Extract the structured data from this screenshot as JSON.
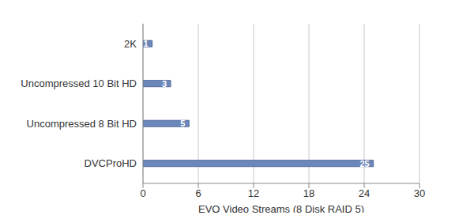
{
  "chart_data": {
    "type": "bar",
    "orientation": "horizontal",
    "categories": [
      "2K",
      "Uncompressed 10 Bit HD",
      "Uncompressed 8 Bit HD",
      "DVCProHD"
    ],
    "values": [
      1,
      3,
      5,
      25
    ],
    "color": "#6c87ba",
    "xlabel": "EVO Video Streams (8 Disk RAID 5)",
    "xlim": [
      0,
      30
    ],
    "xticks": [
      0,
      6,
      12,
      18,
      24,
      30
    ],
    "grid": true,
    "data_labels": true
  }
}
